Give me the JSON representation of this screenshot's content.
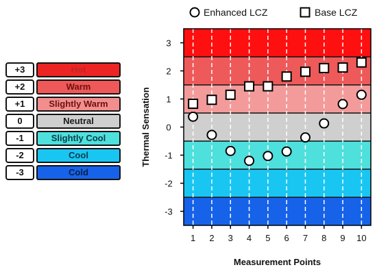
{
  "chart_data": {
    "type": "scatter",
    "xlabel": "Measurement Points",
    "ylabel": "Thermal Sensation",
    "xlim": [
      0.5,
      10.5
    ],
    "ylim": [
      -3.5,
      3.5
    ],
    "xticks": [
      "1",
      "2",
      "3",
      "4",
      "5",
      "6",
      "7",
      "8",
      "9",
      "10"
    ],
    "yticks": [
      "3",
      "2",
      "1",
      "0",
      "-1",
      "-2",
      "-3"
    ],
    "legend_position": "top",
    "grid": "vertical-dashed",
    "series": [
      {
        "name": "Enhanced LCZ",
        "marker": "circle",
        "x": [
          1,
          2,
          3,
          4,
          5,
          6,
          7,
          8,
          9,
          10
        ],
        "y": [
          0.37,
          -0.28,
          -0.85,
          -1.2,
          -1.03,
          -0.87,
          -0.37,
          0.13,
          0.82,
          1.15
        ]
      },
      {
        "name": "Base LCZ",
        "marker": "square",
        "x": [
          1,
          2,
          3,
          4,
          5,
          6,
          7,
          8,
          9,
          10
        ],
        "y": [
          0.83,
          0.97,
          1.15,
          1.45,
          1.45,
          1.8,
          1.97,
          2.1,
          2.12,
          2.3
        ]
      }
    ],
    "bands": [
      {
        "value": 3,
        "color": "#ff1010"
      },
      {
        "value": 2,
        "color": "#ee5a5a"
      },
      {
        "value": 1,
        "color": "#f39b9b"
      },
      {
        "value": 0,
        "color": "#cfcfcf"
      },
      {
        "value": -1,
        "color": "#4ee0dd"
      },
      {
        "value": -2,
        "color": "#19c6f2"
      },
      {
        "value": -3,
        "color": "#1663ea"
      }
    ]
  },
  "scale": [
    {
      "value": "+3",
      "label": "Hot",
      "color": "#ec2424",
      "text_color": "#c02525"
    },
    {
      "value": "+2",
      "label": "Warm",
      "color": "#ee5858",
      "text_color": "#6d1010"
    },
    {
      "value": "+1",
      "label": "Slightly Warm",
      "color": "#f28e8e",
      "text_color": "#6d1010"
    },
    {
      "value": "0",
      "label": "Neutral",
      "color": "#cfcfcf",
      "text_color": "#1a1a1a"
    },
    {
      "value": "-1",
      "label": "Slightly Cool",
      "color": "#4ee0dd",
      "text_color": "#0c3a4a"
    },
    {
      "value": "-2",
      "label": "Cool",
      "color": "#19c6f2",
      "text_color": "#0c3a4a"
    },
    {
      "value": "-3",
      "label": "Cold",
      "color": "#1663ea",
      "text_color": "#0c2040"
    }
  ]
}
